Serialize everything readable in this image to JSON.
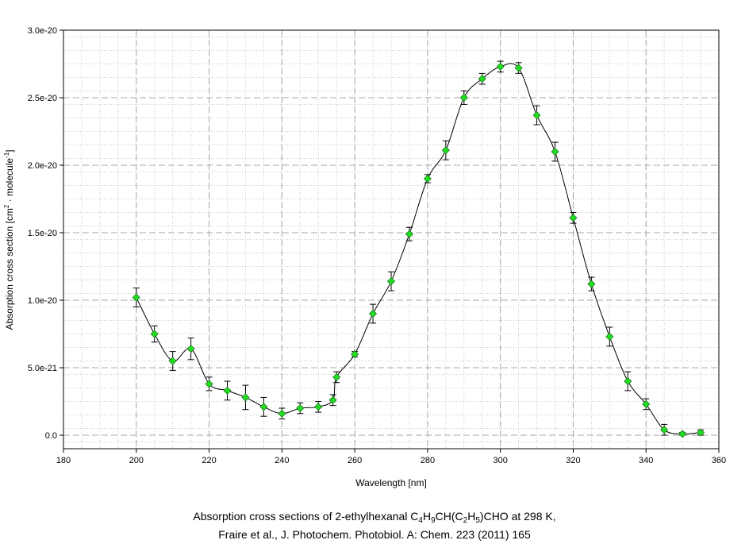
{
  "caption": {
    "line1_prefix": "Absorption cross sections of 2-ethylhexanal C",
    "line1_s1": "4",
    "line1_m1": "H",
    "line1_s2": "9",
    "line1_m2": "CH(C",
    "line1_s3": "2",
    "line1_m3": "H",
    "line1_s4": "5",
    "line1_suffix": ")CHO at 298 K,",
    "line2": "Fraire et al., J. Photochem. Photobiol. A: Chem. 223 (2011) 165"
  },
  "chart_data": {
    "type": "scatter",
    "xlabel": "Wavelength [nm]",
    "ylabel_prefix": "Absorption cross section [cm",
    "ylabel_sup1": "2",
    "ylabel_mid": " · molecule",
    "ylabel_sup2": "-1",
    "ylabel_suffix": "]",
    "xlim": [
      180,
      360
    ],
    "ylim": [
      -1e-21,
      3e-20
    ],
    "x_ticks": [
      180,
      200,
      220,
      240,
      260,
      280,
      300,
      320,
      340,
      360
    ],
    "x_tick_labels": [
      "180",
      "200",
      "220",
      "240",
      "260",
      "280",
      "300",
      "320",
      "340",
      "360"
    ],
    "y_ticks": [
      0,
      5e-21,
      1e-20,
      1.5e-20,
      2e-20,
      2.5e-20,
      3e-20
    ],
    "y_tick_labels": [
      "0.0",
      "5.0e-21",
      "1.0e-20",
      "1.5e-20",
      "2.0e-20",
      "2.5e-20",
      "3.0e-20"
    ],
    "grid": true,
    "marker_color": "#22dd22",
    "line_color": "#000000",
    "points": [
      {
        "x": 200,
        "y": 1.02e-20,
        "err": 7e-22
      },
      {
        "x": 205,
        "y": 7.5e-21,
        "err": 6e-22
      },
      {
        "x": 210,
        "y": 5.5e-21,
        "err": 7e-22
      },
      {
        "x": 215,
        "y": 6.4e-21,
        "err": 8e-22
      },
      {
        "x": 220,
        "y": 3.8e-21,
        "err": 5e-22
      },
      {
        "x": 225,
        "y": 3.3e-21,
        "err": 7e-22
      },
      {
        "x": 230,
        "y": 2.8e-21,
        "err": 9e-22
      },
      {
        "x": 235,
        "y": 2.1e-21,
        "err": 7e-22
      },
      {
        "x": 240,
        "y": 1.6e-21,
        "err": 4e-22
      },
      {
        "x": 245,
        "y": 2e-21,
        "err": 4e-22
      },
      {
        "x": 250,
        "y": 2.1e-21,
        "err": 4e-22
      },
      {
        "x": 254,
        "y": 2.6e-21,
        "err": 4e-22
      },
      {
        "x": 255,
        "y": 4.3e-21,
        "err": 4e-22
      },
      {
        "x": 260,
        "y": 6e-21,
        "err": 2e-22
      },
      {
        "x": 265,
        "y": 9e-21,
        "err": 7e-22
      },
      {
        "x": 270,
        "y": 1.14e-20,
        "err": 7e-22
      },
      {
        "x": 275,
        "y": 1.49e-20,
        "err": 5e-22
      },
      {
        "x": 280,
        "y": 1.9e-20,
        "err": 3e-22
      },
      {
        "x": 285,
        "y": 2.11e-20,
        "err": 7e-22
      },
      {
        "x": 290,
        "y": 2.5e-20,
        "err": 5e-22
      },
      {
        "x": 295,
        "y": 2.64e-20,
        "err": 4e-22
      },
      {
        "x": 300,
        "y": 2.73e-20,
        "err": 4e-22
      },
      {
        "x": 305,
        "y": 2.72e-20,
        "err": 4e-22
      },
      {
        "x": 310,
        "y": 2.37e-20,
        "err": 7e-22
      },
      {
        "x": 315,
        "y": 2.1e-20,
        "err": 7e-22
      },
      {
        "x": 320,
        "y": 1.61e-20,
        "err": 4e-22
      },
      {
        "x": 325,
        "y": 1.12e-20,
        "err": 5e-22
      },
      {
        "x": 330,
        "y": 7.3e-21,
        "err": 7e-22
      },
      {
        "x": 335,
        "y": 4e-21,
        "err": 7e-22
      },
      {
        "x": 340,
        "y": 2.3e-21,
        "err": 4e-22
      },
      {
        "x": 345,
        "y": 4e-22,
        "err": 4e-22
      },
      {
        "x": 350,
        "y": 1e-22,
        "err": 1e-22
      },
      {
        "x": 355,
        "y": 2e-22,
        "err": 2e-22
      }
    ]
  }
}
